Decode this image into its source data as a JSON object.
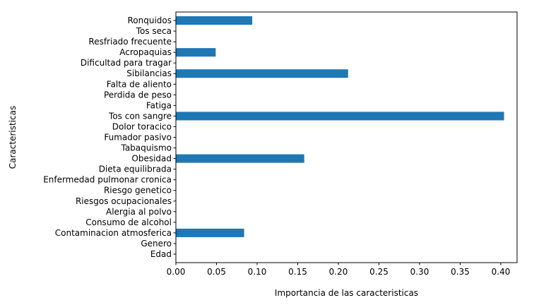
{
  "chart_data": {
    "type": "bar",
    "orientation": "horizontal",
    "title": "",
    "xlabel": "Importancia de las caracteristicas",
    "ylabel": "Caracteristicas",
    "xlim": [
      0,
      0.42
    ],
    "xticks": [
      0.0,
      0.05,
      0.1,
      0.15,
      0.2,
      0.25,
      0.3,
      0.35,
      0.4
    ],
    "xtick_labels": [
      "0.00",
      "0.05",
      "0.10",
      "0.15",
      "0.20",
      "0.25",
      "0.30",
      "0.35",
      "0.40"
    ],
    "grid": false,
    "bar_color": "#1f77b4",
    "categories": [
      "Edad",
      "Genero",
      "Contaminacion atmosferica",
      "Consumo de alcohol",
      "Alergia al polvo",
      "Riesgos ocupacionales",
      "Riesgo genetico",
      "Enfermedad pulmonar cronica",
      "Dieta equilibrada",
      "Obesidad",
      "Tabaquismo",
      "Fumador pasivo",
      "Dolor toracico",
      "Tos con sangre",
      "Fatiga",
      "Perdida de peso",
      "Falta de aliento",
      "Sibilancias",
      "Dificultad para tragar",
      "Acropaquias",
      "Resfriado frecuente",
      "Tos seca",
      "Ronquidos"
    ],
    "values": [
      0,
      0,
      0.084,
      0,
      0,
      0,
      0,
      0,
      0,
      0.158,
      0,
      0,
      0,
      0.404,
      0,
      0,
      0,
      0.212,
      0,
      0.049,
      0,
      0,
      0.094
    ]
  }
}
